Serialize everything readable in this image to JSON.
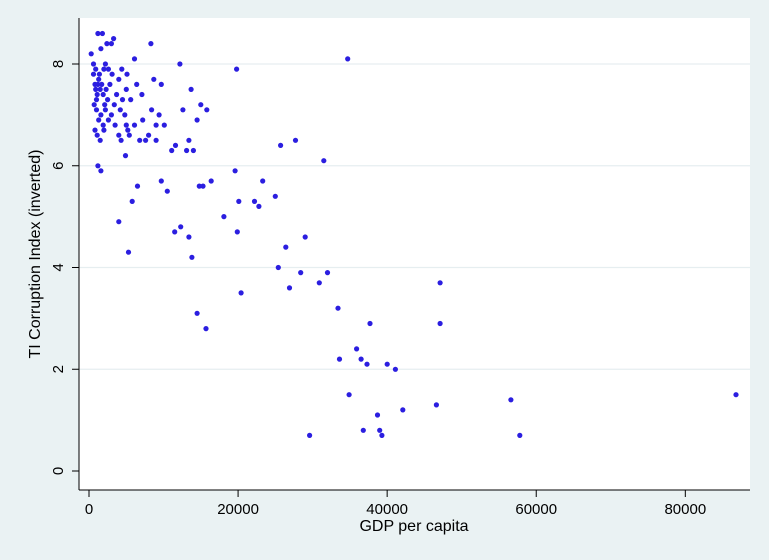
{
  "chart_data": {
    "type": "scatter",
    "title": "",
    "xlabel": "GDP per capita",
    "ylabel": "TI Corruption Index (inverted)",
    "xlim": [
      0,
      87000
    ],
    "ylim": [
      0,
      8.7
    ],
    "xticks": [
      0,
      20000,
      40000,
      60000,
      80000
    ],
    "xtick_labels": [
      "0",
      "20000",
      "40000",
      "60000",
      "80000"
    ],
    "yticks": [
      0,
      2,
      4,
      6,
      8
    ],
    "ytick_labels": [
      "0",
      "2",
      "4",
      "6",
      "8"
    ],
    "grid": "horizontal",
    "legend": "none",
    "colors": {
      "background": "#eaf2f3",
      "plot_background": "#ffffff",
      "marker": "#2b1ee0",
      "grid": "#e6eef0"
    },
    "series": [
      {
        "points": [
          [
            300,
            8.2
          ],
          [
            600,
            8.0
          ],
          [
            900,
            7.9
          ],
          [
            1200,
            8.6
          ],
          [
            1400,
            7.8
          ],
          [
            1600,
            8.3
          ],
          [
            1800,
            8.6
          ],
          [
            2000,
            7.9
          ],
          [
            2200,
            8.0
          ],
          [
            2400,
            8.4
          ],
          [
            2600,
            7.9
          ],
          [
            3000,
            8.4
          ],
          [
            3300,
            8.5
          ],
          [
            600,
            7.8
          ],
          [
            800,
            7.6
          ],
          [
            900,
            7.5
          ],
          [
            1000,
            7.3
          ],
          [
            1100,
            7.4
          ],
          [
            1200,
            7.6
          ],
          [
            1300,
            7.7
          ],
          [
            1500,
            7.5
          ],
          [
            1700,
            7.6
          ],
          [
            1900,
            7.4
          ],
          [
            2100,
            7.2
          ],
          [
            2300,
            7.5
          ],
          [
            2500,
            7.3
          ],
          [
            2800,
            7.6
          ],
          [
            3100,
            7.8
          ],
          [
            3400,
            7.2
          ],
          [
            3700,
            7.4
          ],
          [
            4000,
            7.7
          ],
          [
            700,
            7.2
          ],
          [
            1000,
            7.1
          ],
          [
            1300,
            6.9
          ],
          [
            1600,
            7.0
          ],
          [
            1900,
            6.8
          ],
          [
            2200,
            7.1
          ],
          [
            2600,
            6.9
          ],
          [
            3000,
            7.0
          ],
          [
            3500,
            6.8
          ],
          [
            4200,
            7.1
          ],
          [
            4500,
            7.3
          ],
          [
            5000,
            7.5
          ],
          [
            800,
            6.7
          ],
          [
            1100,
            6.6
          ],
          [
            1500,
            6.5
          ],
          [
            2000,
            6.7
          ],
          [
            4000,
            6.6
          ],
          [
            4800,
            7.0
          ],
          [
            1200,
            6.0
          ],
          [
            1600,
            5.9
          ],
          [
            4300,
            6.5
          ],
          [
            4900,
            6.2
          ],
          [
            5200,
            6.7
          ],
          [
            4400,
            7.9
          ],
          [
            5100,
            7.8
          ],
          [
            5600,
            7.3
          ],
          [
            6100,
            8.1
          ],
          [
            6400,
            7.6
          ],
          [
            7100,
            7.4
          ],
          [
            5000,
            6.8
          ],
          [
            5400,
            6.6
          ],
          [
            6100,
            6.8
          ],
          [
            6800,
            6.5
          ],
          [
            7200,
            6.9
          ],
          [
            7600,
            6.5
          ],
          [
            8000,
            6.6
          ],
          [
            8300,
            8.4
          ],
          [
            8700,
            7.7
          ],
          [
            9000,
            6.8
          ],
          [
            9400,
            7.0
          ],
          [
            8400,
            7.1
          ],
          [
            9000,
            6.5
          ],
          [
            9700,
            7.6
          ],
          [
            10100,
            6.8
          ],
          [
            11100,
            6.3
          ],
          [
            11600,
            6.4
          ],
          [
            12200,
            8.0
          ],
          [
            12600,
            7.1
          ],
          [
            13100,
            6.3
          ],
          [
            13400,
            6.5
          ],
          [
            13700,
            7.5
          ],
          [
            14000,
            6.3
          ],
          [
            14500,
            6.9
          ],
          [
            15000,
            7.2
          ],
          [
            15800,
            7.1
          ],
          [
            15300,
            5.6
          ],
          [
            14800,
            5.6
          ],
          [
            16400,
            5.7
          ],
          [
            9700,
            5.7
          ],
          [
            10500,
            5.5
          ],
          [
            6500,
            5.6
          ],
          [
            5800,
            5.3
          ],
          [
            4000,
            4.9
          ],
          [
            5300,
            4.3
          ],
          [
            11500,
            4.7
          ],
          [
            12300,
            4.8
          ],
          [
            13400,
            4.6
          ],
          [
            13800,
            4.2
          ],
          [
            14500,
            3.1
          ],
          [
            15700,
            2.8
          ],
          [
            18100,
            5.0
          ],
          [
            19600,
            5.9
          ],
          [
            19900,
            4.7
          ],
          [
            20100,
            5.3
          ],
          [
            20400,
            3.5
          ],
          [
            19800,
            7.9
          ],
          [
            22200,
            5.3
          ],
          [
            22800,
            5.2
          ],
          [
            23300,
            5.7
          ],
          [
            25000,
            5.4
          ],
          [
            25400,
            4.0
          ],
          [
            25700,
            6.4
          ],
          [
            26400,
            4.4
          ],
          [
            26900,
            3.6
          ],
          [
            27700,
            6.5
          ],
          [
            28400,
            3.9
          ],
          [
            29000,
            4.6
          ],
          [
            29600,
            0.7
          ],
          [
            30900,
            3.7
          ],
          [
            31500,
            6.1
          ],
          [
            32000,
            3.9
          ],
          [
            33400,
            3.2
          ],
          [
            33600,
            2.2
          ],
          [
            34700,
            8.1
          ],
          [
            34900,
            1.5
          ],
          [
            35900,
            2.4
          ],
          [
            36500,
            2.2
          ],
          [
            36800,
            0.8
          ],
          [
            37300,
            2.1
          ],
          [
            37700,
            2.9
          ],
          [
            38700,
            1.1
          ],
          [
            39000,
            0.8
          ],
          [
            39300,
            0.7
          ],
          [
            40000,
            2.1
          ],
          [
            41100,
            2.0
          ],
          [
            42100,
            1.2
          ],
          [
            46600,
            1.3
          ],
          [
            47100,
            3.7
          ],
          [
            47100,
            2.9
          ],
          [
            56600,
            1.4
          ],
          [
            57800,
            0.7
          ],
          [
            86800,
            1.5
          ]
        ]
      }
    ]
  }
}
